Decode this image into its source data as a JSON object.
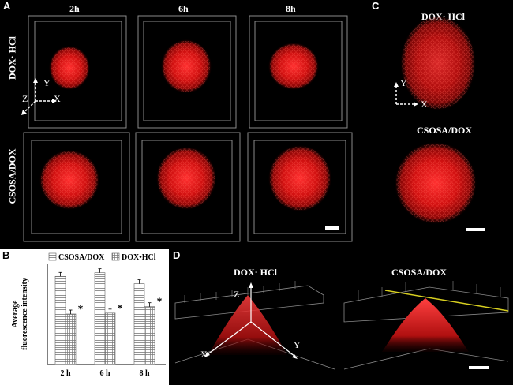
{
  "figure": {
    "panel_letters": {
      "a": "A",
      "b": "B",
      "c": "C",
      "d": "D"
    },
    "panel_a": {
      "time_labels": [
        "2h",
        "6h",
        "8h"
      ],
      "row_labels": [
        "DOX· HCl",
        "CSOSA/DOX"
      ],
      "axis_labels": {
        "x": "X",
        "y": "Y",
        "z": "Z"
      }
    },
    "panel_c": {
      "labels": [
        "DOX· HCl",
        "CSOSA/DOX"
      ],
      "axis_labels": {
        "x": "X",
        "y": "Y"
      }
    },
    "panel_d": {
      "labels": [
        "DOX· HCl",
        "CSOSA/DOX"
      ],
      "axis_labels": {
        "x": "X",
        "y": "Y",
        "z": "Z"
      }
    },
    "colors": {
      "fluorescence": "#e01010",
      "frame": "#9a9a9a",
      "highlight": "#d8d020"
    }
  },
  "chart_data": {
    "type": "bar",
    "title": "",
    "xlabel": "",
    "ylabel": "Average fluorescence intensity",
    "categories": [
      "2 h",
      "6 h",
      "8 h"
    ],
    "series": [
      {
        "name": "CSOSA/DOX",
        "values": [
          96,
          100,
          88
        ]
      },
      {
        "name": "DOX•HCl",
        "values": [
          55,
          56,
          63
        ]
      }
    ],
    "significance": [
      "*",
      "*",
      "*"
    ],
    "ylim": [
      0,
      110
    ]
  }
}
